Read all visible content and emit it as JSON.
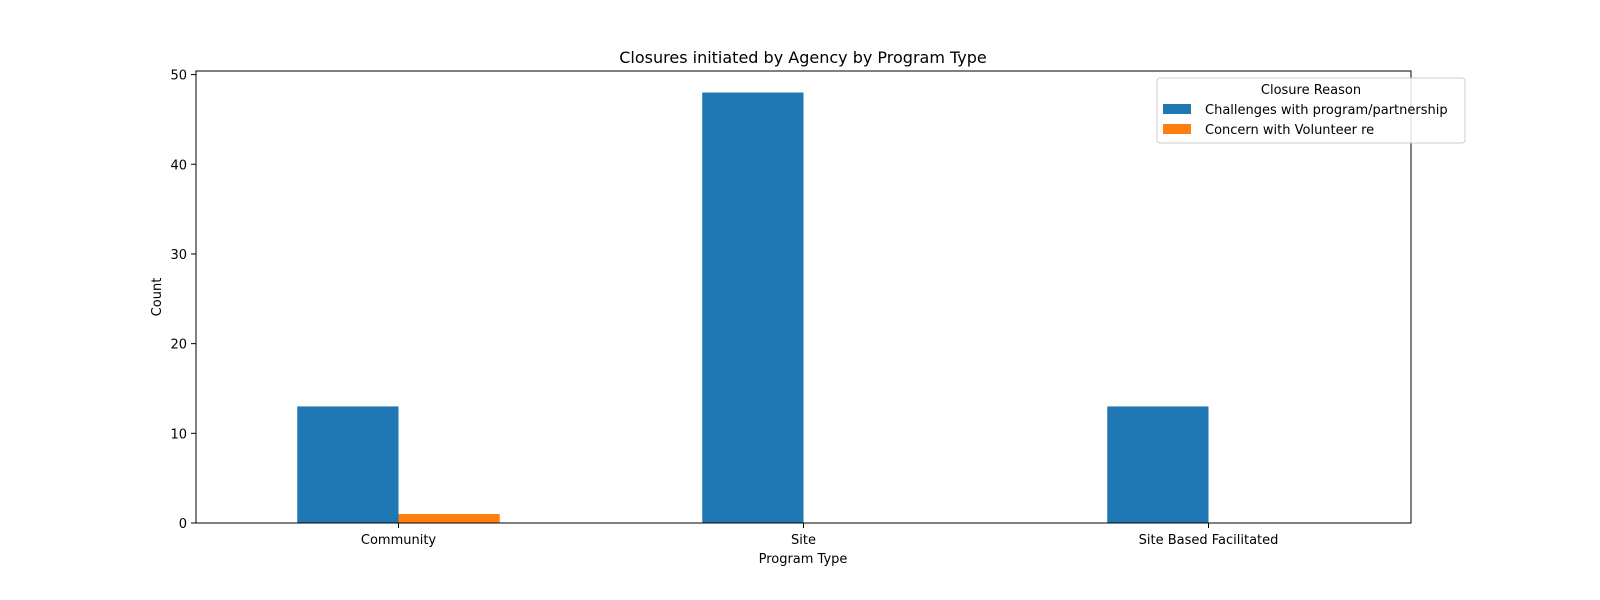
{
  "chart_data": {
    "type": "bar",
    "title": "Closures initiated by Agency by Program Type",
    "xlabel": "Program Type",
    "ylabel": "Count",
    "categories": [
      "Community",
      "Site",
      "Site Based Facilitated"
    ],
    "series": [
      {
        "name": "Challenges with program/partnership",
        "values": [
          13,
          48,
          13
        ],
        "color": "#1f77b4"
      },
      {
        "name": "Concern with Volunteer re",
        "values": [
          1,
          0,
          0
        ],
        "color": "#ff7f0e"
      }
    ],
    "ylim": [
      0,
      50.4
    ],
    "yticks": [
      0,
      10,
      20,
      30,
      40,
      50
    ],
    "grid": false,
    "legend": {
      "title": "Closure Reason",
      "placement": "top-right"
    }
  }
}
